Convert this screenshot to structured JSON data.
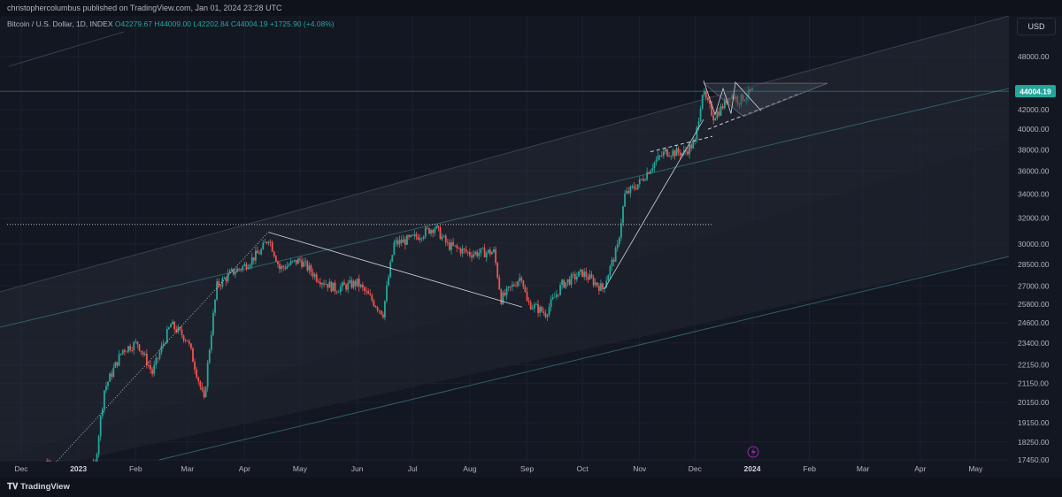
{
  "header": {
    "published": "christophercolumbus published on TradingView.com, Jan 01, 2024 23:28 UTC"
  },
  "legend": {
    "symbol": "Bitcoin / U.S. Dollar, 1D, INDEX",
    "open": "O42279.67",
    "high": "H44009.00",
    "low": "L42202.84",
    "close": "C44004.19",
    "change": "+1725.90 (+4.08%)"
  },
  "currency_label": "USD",
  "last_price_label": "44004.19",
  "footer": {
    "brand": "TradingView"
  },
  "colors": {
    "background": "#131722",
    "up": "#26a69a",
    "down": "#ef5350",
    "channel": "#2a2e39",
    "trendline": "#d1d4dc",
    "price_tag": "#26a69a"
  },
  "chart_data": {
    "type": "candlestick",
    "title": "Bitcoin / U.S. Dollar, 1D, INDEX",
    "x_tick_labels": [
      "Dec",
      "2023",
      "Feb",
      "Mar",
      "Apr",
      "May",
      "Jun",
      "Jul",
      "Aug",
      "Sep",
      "Oct",
      "Nov",
      "Dec",
      "2024",
      "Feb",
      "Mar",
      "Apr",
      "May"
    ],
    "y_tick_labels": [
      "48000.00",
      "44004.19",
      "42000.00",
      "40000.00",
      "38000.00",
      "36000.00",
      "34000.00",
      "32000.00",
      "30000.00",
      "28500.00",
      "27000.00",
      "25800.00",
      "24600.00",
      "23400.00",
      "22150.00",
      "21150.00",
      "20150.00",
      "19150.00",
      "18250.00",
      "17450.00"
    ],
    "y_scale": "log",
    "ylim": [
      17450,
      49500
    ],
    "last_price": 44004.19,
    "close_series": [
      {
        "date": "2022-12-15",
        "close": 17400
      },
      {
        "date": "2023-01-01",
        "close": 16600
      },
      {
        "date": "2023-01-10",
        "close": 17200
      },
      {
        "date": "2023-01-15",
        "close": 20800
      },
      {
        "date": "2023-01-25",
        "close": 23000
      },
      {
        "date": "2023-02-02",
        "close": 23400
      },
      {
        "date": "2023-02-10",
        "close": 21700
      },
      {
        "date": "2023-02-20",
        "close": 24500
      },
      {
        "date": "2023-03-01",
        "close": 23600
      },
      {
        "date": "2023-03-10",
        "close": 20200
      },
      {
        "date": "2023-03-17",
        "close": 27000
      },
      {
        "date": "2023-03-25",
        "close": 27900
      },
      {
        "date": "2023-04-01",
        "close": 28400
      },
      {
        "date": "2023-04-10",
        "close": 29500
      },
      {
        "date": "2023-04-14",
        "close": 30500
      },
      {
        "date": "2023-04-20",
        "close": 28200
      },
      {
        "date": "2023-05-01",
        "close": 28800
      },
      {
        "date": "2023-05-10",
        "close": 27600
      },
      {
        "date": "2023-05-20",
        "close": 26800
      },
      {
        "date": "2023-06-01",
        "close": 27200
      },
      {
        "date": "2023-06-10",
        "close": 25900
      },
      {
        "date": "2023-06-15",
        "close": 25200
      },
      {
        "date": "2023-06-21",
        "close": 30000
      },
      {
        "date": "2023-07-01",
        "close": 30400
      },
      {
        "date": "2023-07-13",
        "close": 31300
      },
      {
        "date": "2023-07-20",
        "close": 29900
      },
      {
        "date": "2023-08-01",
        "close": 29300
      },
      {
        "date": "2023-08-14",
        "close": 29400
      },
      {
        "date": "2023-08-18",
        "close": 26100
      },
      {
        "date": "2023-08-29",
        "close": 27700
      },
      {
        "date": "2023-09-01",
        "close": 25900
      },
      {
        "date": "2023-09-11",
        "close": 25200
      },
      {
        "date": "2023-09-20",
        "close": 27100
      },
      {
        "date": "2023-10-01",
        "close": 27900
      },
      {
        "date": "2023-10-12",
        "close": 26800
      },
      {
        "date": "2023-10-20",
        "close": 29700
      },
      {
        "date": "2023-10-24",
        "close": 33900
      },
      {
        "date": "2023-11-01",
        "close": 35000
      },
      {
        "date": "2023-11-09",
        "close": 36800
      },
      {
        "date": "2023-11-15",
        "close": 37800
      },
      {
        "date": "2023-11-25",
        "close": 37700
      },
      {
        "date": "2023-12-01",
        "close": 38700
      },
      {
        "date": "2023-12-05",
        "close": 43900
      },
      {
        "date": "2023-12-11",
        "close": 41300
      },
      {
        "date": "2023-12-15",
        "close": 42100
      },
      {
        "date": "2023-12-20",
        "close": 43700
      },
      {
        "date": "2023-12-25",
        "close": 43000
      },
      {
        "date": "2024-01-01",
        "close": 44004
      }
    ]
  }
}
